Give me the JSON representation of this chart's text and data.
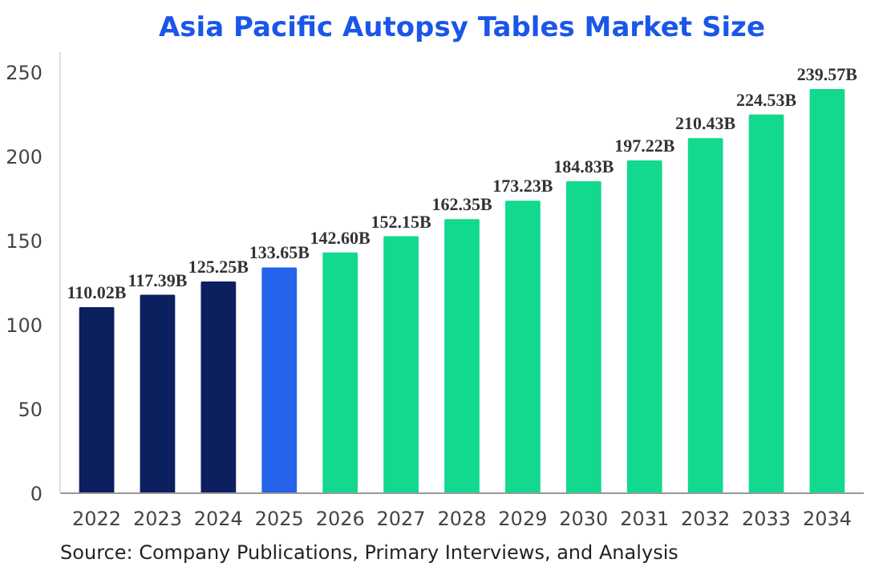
{
  "chart_data": {
    "type": "bar",
    "title": "Asia Pacific Autopsy Tables Market Size",
    "categories": [
      "2022",
      "2023",
      "2024",
      "2025",
      "2026",
      "2027",
      "2028",
      "2029",
      "2030",
      "2031",
      "2032",
      "2033",
      "2034"
    ],
    "values": [
      110.02,
      117.39,
      125.25,
      133.65,
      142.6,
      152.15,
      162.35,
      173.23,
      184.83,
      197.22,
      210.43,
      224.53,
      239.57
    ],
    "value_labels": [
      "110.02B",
      "117.39B",
      "125.25B",
      "133.65B",
      "142.60B",
      "152.15B",
      "162.35B",
      "173.23B",
      "184.83B",
      "197.22B",
      "210.43B",
      "224.53B",
      "239.57B"
    ],
    "colors": [
      "#0c1f5e",
      "#0c1f5e",
      "#0c1f5e",
      "#2563eb",
      "#12d98e",
      "#12d98e",
      "#12d98e",
      "#12d98e",
      "#12d98e",
      "#12d98e",
      "#12d98e",
      "#12d98e",
      "#12d98e"
    ],
    "ylim": [
      0,
      262
    ],
    "yticks": [
      0,
      50,
      100,
      150,
      200,
      250
    ],
    "grid": false,
    "annotations": [
      "Source: Company Publications, Primary Interviews, and Analysis"
    ]
  }
}
